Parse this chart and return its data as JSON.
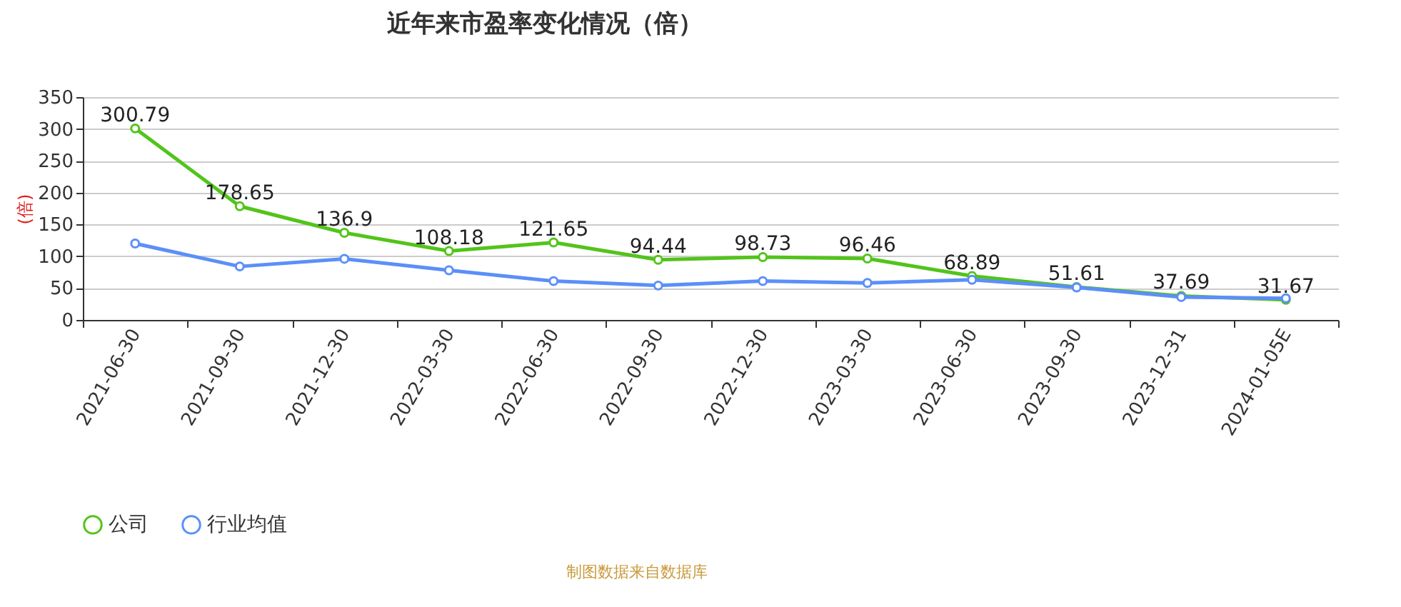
{
  "chart_data": {
    "type": "line",
    "title": "近年来市盈率变化情况（倍）",
    "ylabel": "(倍)",
    "categories": [
      "2021-06-30",
      "2021-09-30",
      "2021-12-30",
      "2022-03-30",
      "2022-06-30",
      "2022-09-30",
      "2022-12-30",
      "2023-03-30",
      "2023-06-30",
      "2023-09-30",
      "2023-12-31",
      "2024-01-05E"
    ],
    "series": [
      {
        "name": "公司",
        "color": "#52c41a",
        "values": [
          300.79,
          178.65,
          136.9,
          108.18,
          121.65,
          94.44,
          98.73,
          96.46,
          68.89,
          51.61,
          37.69,
          31.67
        ],
        "value_labels": [
          "300.79",
          "178.65",
          "136.9",
          "108.18",
          "121.65",
          "94.44",
          "98.73",
          "96.46",
          "68.89",
          "51.61",
          "37.69",
          "31.67"
        ]
      },
      {
        "name": "行业均值",
        "color": "#5b8ff9",
        "values": [
          120,
          84,
          96,
          78,
          61,
          54,
          61,
          58,
          63,
          51,
          36,
          34
        ]
      }
    ],
    "ylim": [
      0,
      350
    ],
    "yticks": [
      0,
      50,
      100,
      150,
      200,
      250,
      300,
      350
    ],
    "grid": "y",
    "legend": "bottom",
    "marker": "circle",
    "annotations": [
      "制图数据来自数据库"
    ]
  }
}
